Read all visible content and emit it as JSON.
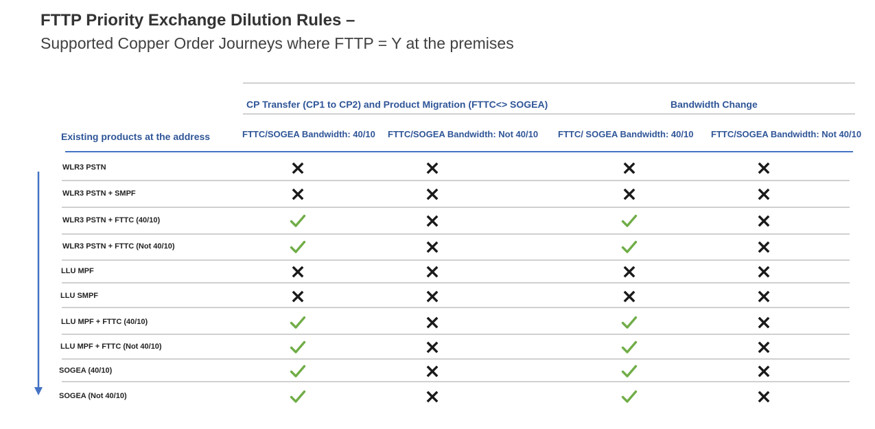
{
  "title": "FTTP Priority Exchange Dilution Rules –",
  "subtitle": "Supported Copper Order Journeys where FTTP = Y at the premises",
  "table": {
    "row_header": "Existing products at the address",
    "groups": [
      {
        "label": "CP Transfer (CP1 to CP2) and Product Migration (FTTC<> SOGEA)"
      },
      {
        "label": "Bandwidth Change"
      }
    ],
    "columns": [
      {
        "label": "FTTC/SOGEA Bandwidth: 40/10"
      },
      {
        "label": "FTTC/SOGEA Bandwidth: Not 40/10"
      },
      {
        "label": "FTTC/ SOGEA Bandwidth: 40/10"
      },
      {
        "label": "FTTC/SOGEA Bandwidth: Not 40/10"
      }
    ],
    "rows": [
      {
        "label": "WLR3 PSTN",
        "values": [
          "cross-icon",
          "cross-icon",
          "cross-icon",
          "cross-icon"
        ]
      },
      {
        "label": "WLR3 PSTN + SMPF",
        "values": [
          "cross-icon",
          "cross-icon",
          "cross-icon",
          "cross-icon"
        ]
      },
      {
        "label": "WLR3 PSTN + FTTC (40/10)",
        "values": [
          "check-icon",
          "cross-icon",
          "check-icon",
          "cross-icon"
        ]
      },
      {
        "label": "WLR3 PSTN + FTTC (Not 40/10)",
        "values": [
          "check-icon",
          "cross-icon",
          "check-icon",
          "cross-icon"
        ]
      },
      {
        "label": "LLU MPF",
        "values": [
          "cross-icon",
          "cross-icon",
          "cross-icon",
          "cross-icon"
        ]
      },
      {
        "label": "LLU SMPF",
        "values": [
          "cross-icon",
          "cross-icon",
          "cross-icon",
          "cross-icon"
        ]
      },
      {
        "label": "LLU MPF + FTTC (40/10)",
        "values": [
          "check-icon",
          "cross-icon",
          "check-icon",
          "cross-icon"
        ]
      },
      {
        "label": "LLU MPF + FTTC (Not 40/10)",
        "values": [
          "check-icon",
          "cross-icon",
          "check-icon",
          "cross-icon"
        ]
      },
      {
        "label": "SOGEA (40/10)",
        "values": [
          "check-icon",
          "cross-icon",
          "check-icon",
          "cross-icon"
        ]
      },
      {
        "label": "SOGEA (Not 40/10)",
        "values": [
          "check-icon",
          "cross-icon",
          "check-icon",
          "cross-icon"
        ]
      }
    ]
  },
  "colors": {
    "heading_blue": "#2f5597",
    "rule_blue": "#4472c4",
    "check_green": "#70ad47",
    "cross_dark": "#1a1a1a"
  }
}
